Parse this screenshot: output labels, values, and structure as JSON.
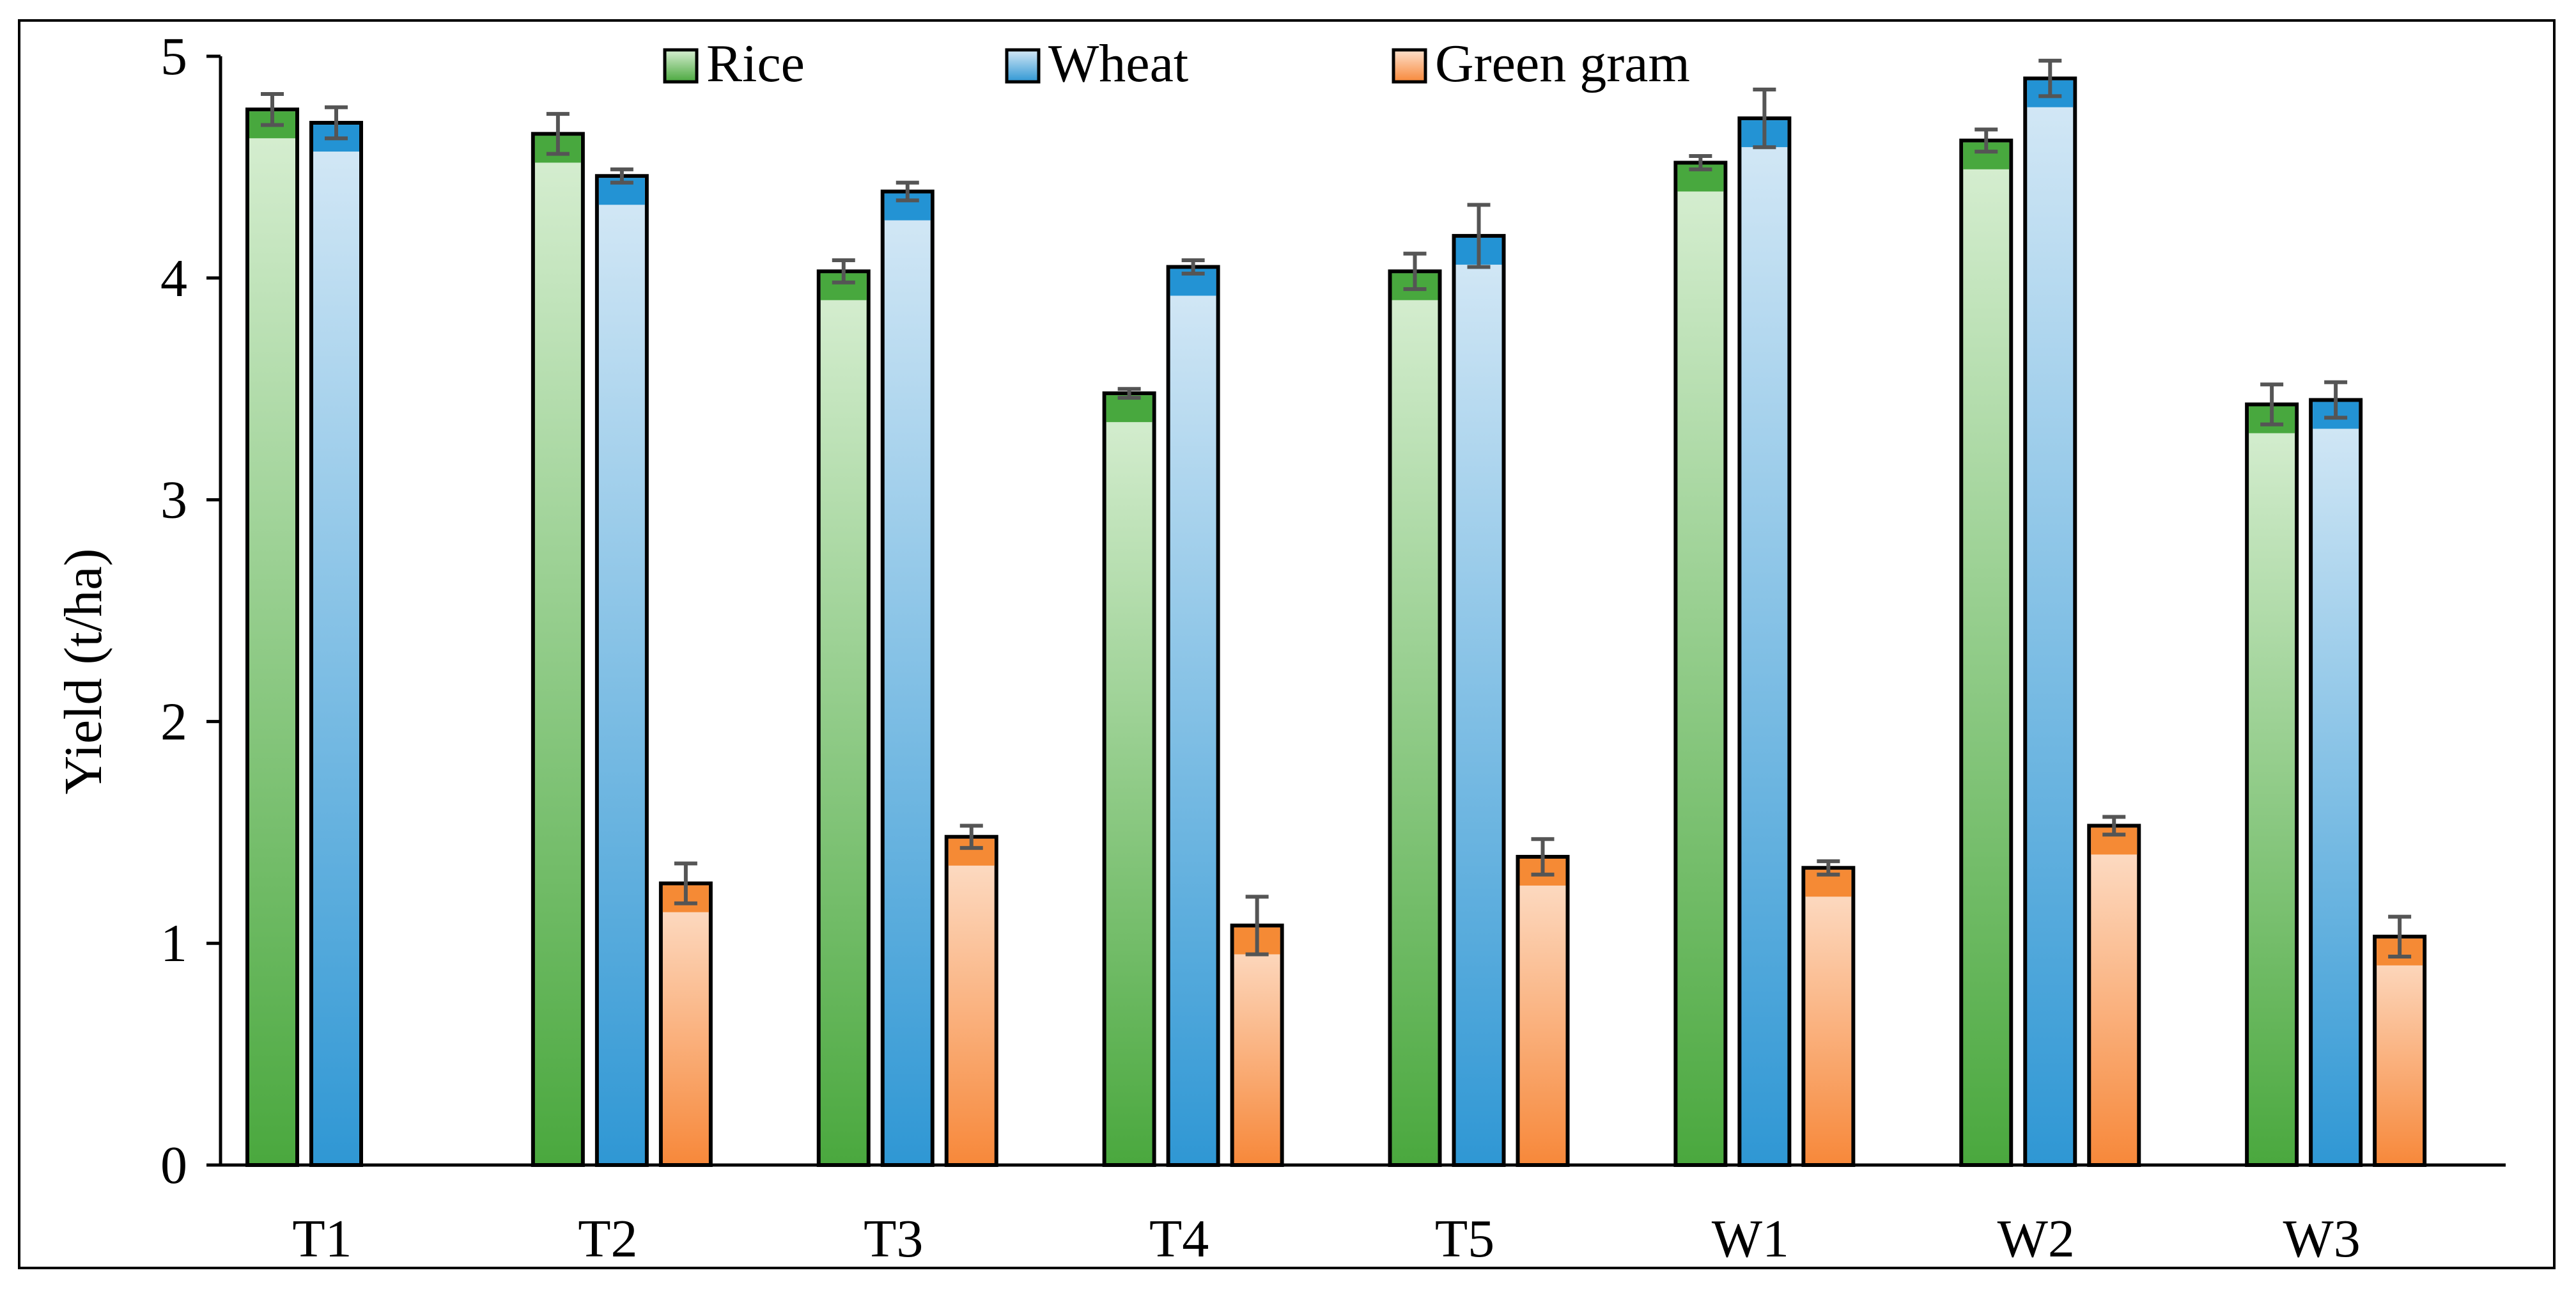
{
  "chart_data": {
    "type": "bar",
    "title": "",
    "xlabel": "",
    "ylabel": "Yield (t/ha)",
    "ylim": [
      0,
      5
    ],
    "yticks": [
      "0",
      "1",
      "2",
      "3",
      "4",
      "5"
    ],
    "grid": false,
    "legend_position": "top",
    "categories": [
      "T1",
      "T2",
      "T3",
      "T4",
      "T5",
      "W1",
      "W2",
      "W3"
    ],
    "series": [
      {
        "name": "Rice",
        "color_top": "#d8efd3",
        "color_bottom": "#4aa83e",
        "cap_color": "#48a83e",
        "values": [
          4.76,
          4.65,
          4.03,
          3.48,
          4.03,
          4.52,
          4.62,
          3.43
        ],
        "errors": [
          0.07,
          0.09,
          0.05,
          0.02,
          0.08,
          0.03,
          0.05,
          0.09
        ]
      },
      {
        "name": "Wheat",
        "color_top": "#d6e9f6",
        "color_bottom": "#2f97d4",
        "cap_color": "#2393d4",
        "values": [
          4.7,
          4.46,
          4.39,
          4.05,
          4.19,
          4.72,
          4.9,
          3.45
        ],
        "errors": [
          0.07,
          0.03,
          0.04,
          0.03,
          0.14,
          0.13,
          0.08,
          0.08
        ]
      },
      {
        "name": "Green gram",
        "color_top": "#fde1cd",
        "color_bottom": "#f7883a",
        "cap_color": "#f58a35",
        "values": [
          null,
          1.27,
          1.48,
          1.08,
          1.39,
          1.34,
          1.53,
          1.03
        ],
        "errors": [
          null,
          0.09,
          0.05,
          0.13,
          0.08,
          0.03,
          0.04,
          0.09
        ]
      }
    ]
  }
}
